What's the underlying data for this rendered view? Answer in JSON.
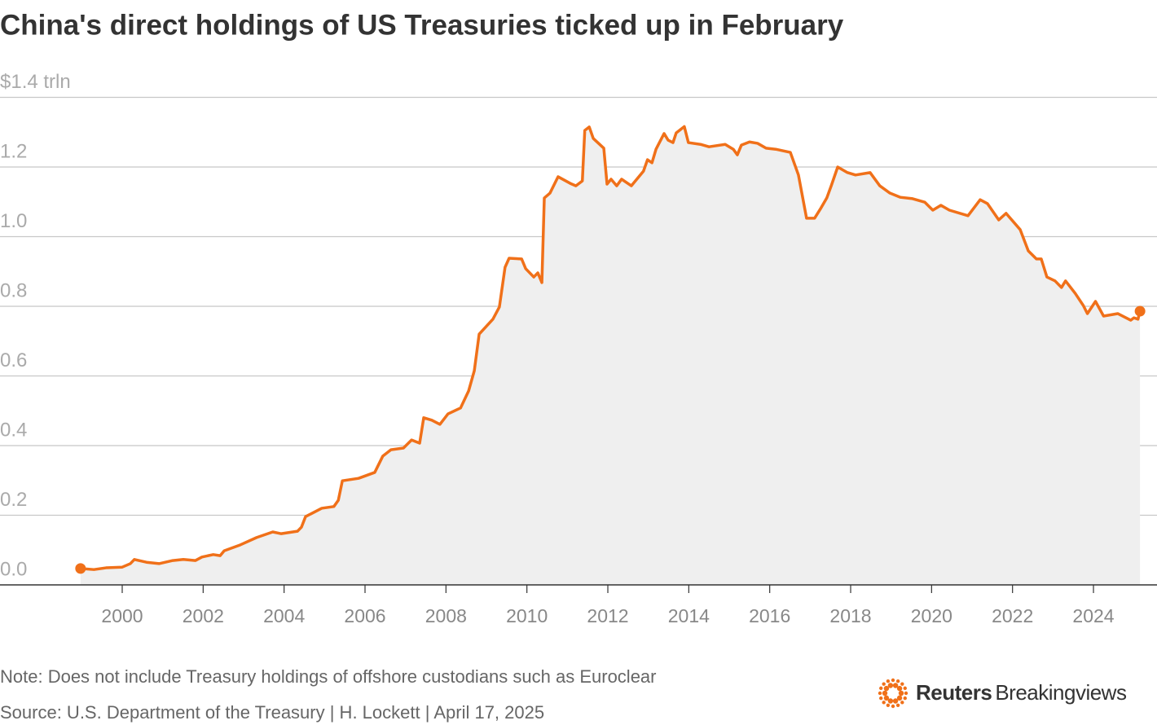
{
  "chart_data": {
    "type": "area-line",
    "title": "China's direct holdings of US Treasuries ticked up in February",
    "note": "Note: Does not include Treasury holdings of offshore custodians such as Euroclear",
    "source": "Source: U.S. Department of the Treasury | H. Lockett | April 17, 2025",
    "logo": {
      "name": "Reuters",
      "product": "Breakingviews"
    },
    "color": "#f07019",
    "area_color": "#efefef",
    "grid": true,
    "end_markers": true,
    "xlim": [
      1996.98,
      2025.57
    ],
    "xticks": [
      2000,
      2002,
      2004,
      2006,
      2008,
      2010,
      2012,
      2014,
      2016,
      2018,
      2020,
      2022,
      2024
    ],
    "ylim": [
      0,
      1.4
    ],
    "yticks": [
      {
        "value": 0,
        "label": "0.0"
      },
      0.2,
      0.4,
      0.6,
      0.8,
      {
        "value": 1,
        "label": "1.0"
      },
      1.2,
      {
        "value": 1.4,
        "label": "$1.4 trln"
      }
    ],
    "x": [
      1998.97,
      1999.3,
      1999.6,
      2000.0,
      2000.2,
      2000.3,
      2000.6,
      2000.91,
      2001.25,
      2001.51,
      2001.81,
      2001.97,
      2002.25,
      2002.42,
      2002.52,
      2002.92,
      2003.32,
      2003.72,
      2003.93,
      2004.33,
      2004.43,
      2004.53,
      2004.93,
      2005.23,
      2005.34,
      2005.44,
      2005.84,
      2006.24,
      2006.44,
      2006.64,
      2006.95,
      2007.15,
      2007.35,
      2007.45,
      2007.65,
      2007.85,
      2008.05,
      2008.36,
      2008.56,
      2008.7,
      2008.82,
      2009.16,
      2009.32,
      2009.46,
      2009.56,
      2009.87,
      2009.97,
      2010.17,
      2010.27,
      2010.37,
      2010.43,
      2010.57,
      2010.77,
      2011.07,
      2011.21,
      2011.37,
      2011.43,
      2011.54,
      2011.64,
      2011.9,
      2011.98,
      2012.08,
      2012.22,
      2012.34,
      2012.58,
      2012.88,
      2012.98,
      2013.09,
      2013.19,
      2013.39,
      2013.49,
      2013.61,
      2013.69,
      2013.89,
      2013.99,
      2014.29,
      2014.5,
      2014.9,
      2015.1,
      2015.2,
      2015.3,
      2015.5,
      2015.7,
      2015.91,
      2016.15,
      2016.51,
      2016.71,
      2016.91,
      2017.11,
      2017.27,
      2017.41,
      2017.52,
      2017.68,
      2017.92,
      2018.12,
      2018.48,
      2018.72,
      2018.97,
      2019.23,
      2019.53,
      2019.83,
      2020.03,
      2020.23,
      2020.44,
      2020.9,
      2021.2,
      2021.38,
      2021.66,
      2021.84,
      2022.19,
      2022.39,
      2022.59,
      2022.71,
      2022.85,
      2023.05,
      2023.21,
      2023.31,
      2023.55,
      2023.75,
      2023.85,
      2024.05,
      2024.25,
      2024.6,
      2024.92,
      2025.0,
      2025.1,
      2025.15
    ],
    "values": [
      0.047,
      0.044,
      0.049,
      0.051,
      0.061,
      0.073,
      0.065,
      0.061,
      0.07,
      0.073,
      0.07,
      0.08,
      0.087,
      0.084,
      0.098,
      0.115,
      0.136,
      0.152,
      0.147,
      0.154,
      0.166,
      0.196,
      0.22,
      0.225,
      0.243,
      0.299,
      0.306,
      0.323,
      0.37,
      0.388,
      0.393,
      0.416,
      0.407,
      0.48,
      0.473,
      0.461,
      0.491,
      0.508,
      0.557,
      0.615,
      0.72,
      0.763,
      0.798,
      0.912,
      0.938,
      0.936,
      0.908,
      0.884,
      0.896,
      0.868,
      1.111,
      1.125,
      1.172,
      1.153,
      1.146,
      1.16,
      1.305,
      1.315,
      1.282,
      1.254,
      1.151,
      1.165,
      1.146,
      1.165,
      1.146,
      1.188,
      1.221,
      1.212,
      1.251,
      1.296,
      1.277,
      1.27,
      1.298,
      1.316,
      1.27,
      1.265,
      1.258,
      1.265,
      1.251,
      1.235,
      1.263,
      1.272,
      1.268,
      1.254,
      1.251,
      1.242,
      1.177,
      1.053,
      1.053,
      1.083,
      1.111,
      1.146,
      1.2,
      1.184,
      1.177,
      1.184,
      1.146,
      1.125,
      1.113,
      1.109,
      1.099,
      1.076,
      1.09,
      1.076,
      1.06,
      1.106,
      1.095,
      1.048,
      1.067,
      1.02,
      0.959,
      0.936,
      0.936,
      0.884,
      0.873,
      0.854,
      0.873,
      0.837,
      0.802,
      0.779,
      0.814,
      0.772,
      0.779,
      0.76,
      0.767,
      0.763,
      0.786
    ]
  }
}
